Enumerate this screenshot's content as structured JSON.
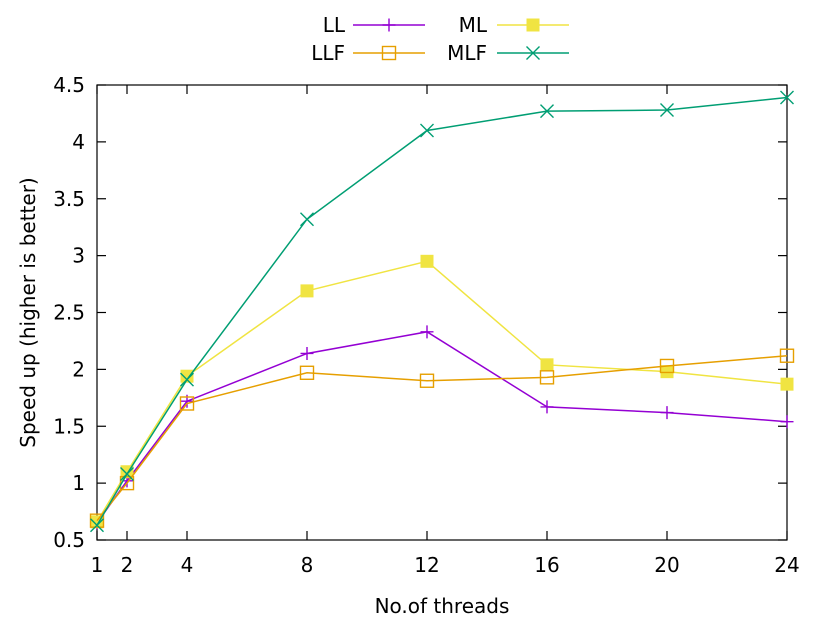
{
  "chart_data": {
    "type": "line",
    "title": "",
    "xlabel": "No.of threads",
    "ylabel": "Speed up (higher is better)",
    "x": [
      1,
      2,
      4,
      8,
      12,
      16,
      20,
      24
    ],
    "xlim": [
      1,
      24
    ],
    "ylim": [
      0.5,
      4.5
    ],
    "xticks": [
      1,
      2,
      4,
      8,
      12,
      16,
      20,
      24
    ],
    "yticks": [
      0.5,
      1,
      1.5,
      2,
      2.5,
      3,
      3.5,
      4,
      4.5
    ],
    "ytick_labels": [
      "0.5",
      "1",
      "1.5",
      "2",
      "2.5",
      "3",
      "3.5",
      "4",
      "4.5"
    ],
    "grid": false,
    "legend_position": "top-center",
    "series": [
      {
        "name": "LL",
        "color": "#9400d3",
        "marker": "plus",
        "values": [
          0.65,
          1.02,
          1.72,
          2.14,
          2.33,
          1.67,
          1.62,
          1.54
        ]
      },
      {
        "name": "ML",
        "color": "#f0e442",
        "marker": "filled-square",
        "values": [
          0.66,
          1.1,
          1.94,
          2.69,
          2.95,
          2.04,
          1.98,
          1.87
        ]
      },
      {
        "name": "LLF",
        "color": "#e69f00",
        "marker": "open-square",
        "values": [
          0.67,
          1.0,
          1.7,
          1.97,
          1.9,
          1.93,
          2.03,
          2.12
        ]
      },
      {
        "name": "MLF",
        "color": "#009e73",
        "marker": "x",
        "values": [
          0.63,
          1.08,
          1.91,
          3.32,
          4.1,
          4.27,
          4.28,
          4.39
        ]
      }
    ]
  }
}
